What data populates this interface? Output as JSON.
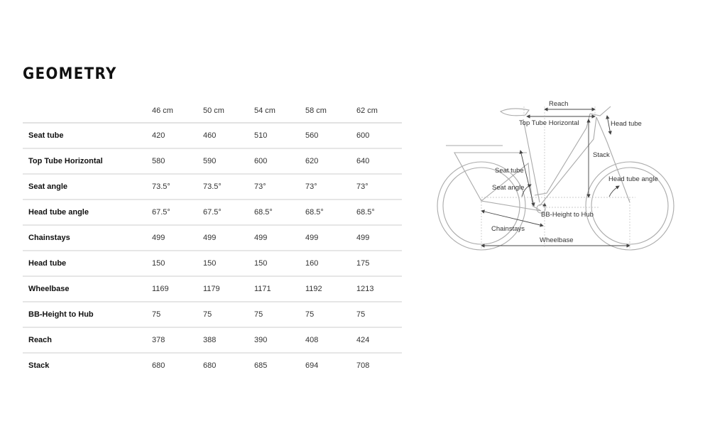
{
  "title": "GEOMETRY",
  "table": {
    "sizes": [
      "46 cm",
      "50 cm",
      "54 cm",
      "58 cm",
      "62 cm"
    ],
    "rows": [
      {
        "label": "Seat tube",
        "values": [
          "420",
          "460",
          "510",
          "560",
          "600"
        ]
      },
      {
        "label": "Top Tube Horizontal",
        "values": [
          "580",
          "590",
          "600",
          "620",
          "640"
        ]
      },
      {
        "label": "Seat angle",
        "values": [
          "73.5°",
          "73.5°",
          "73°",
          "73°",
          "73°"
        ]
      },
      {
        "label": "Head tube angle",
        "values": [
          "67.5°",
          "67.5°",
          "68.5°",
          "68.5°",
          "68.5°"
        ]
      },
      {
        "label": "Chainstays",
        "values": [
          "499",
          "499",
          "499",
          "499",
          "499"
        ]
      },
      {
        "label": "Head tube",
        "values": [
          "150",
          "150",
          "150",
          "160",
          "175"
        ]
      },
      {
        "label": "Wheelbase",
        "values": [
          "1169",
          "1179",
          "1171",
          "1192",
          "1213"
        ]
      },
      {
        "label": "BB-Height to Hub",
        "values": [
          "75",
          "75",
          "75",
          "75",
          "75"
        ]
      },
      {
        "label": "Reach",
        "values": [
          "378",
          "388",
          "390",
          "408",
          "424"
        ]
      },
      {
        "label": "Stack",
        "values": [
          "680",
          "680",
          "685",
          "694",
          "708"
        ]
      }
    ]
  },
  "diagram": {
    "labels": {
      "reach": "Reach",
      "top_tube": "Top Tube Horizontal",
      "head_tube": "Head tube",
      "stack": "Stack",
      "seat_tube": "Seat tube",
      "seat_angle": "Seat angle",
      "head_tube_angle": "Head tube angle",
      "bb_height": "BB-Height to Hub",
      "chainstays": "Chainstays",
      "wheelbase": "Wheelbase"
    }
  }
}
